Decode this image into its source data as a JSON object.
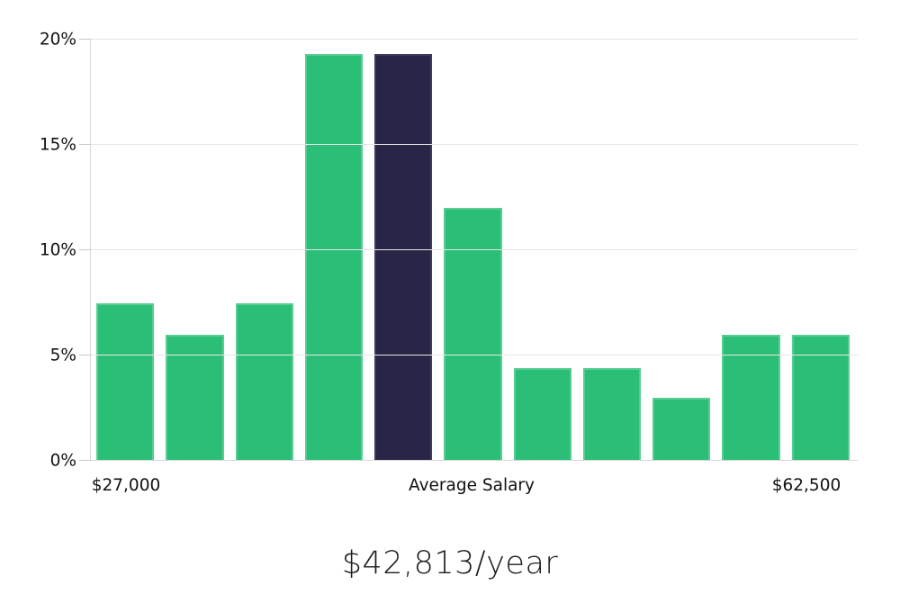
{
  "chart_data": {
    "type": "bar",
    "subtype": "histogram",
    "title": "$42,813/year",
    "x_axis_labels": [
      "$27,000",
      "Average Salary",
      "$62,500"
    ],
    "x_axis_range": [
      "$27,000",
      "$62,500"
    ],
    "y_ticks": {
      "labels": [
        "0%",
        "5%",
        "10%",
        "15%",
        "20%"
      ],
      "values": [
        0,
        5,
        10,
        15,
        20
      ]
    },
    "ylim": [
      0,
      20
    ],
    "values": [
      7.5,
      6.0,
      7.5,
      19.3,
      19.3,
      12.0,
      4.4,
      4.4,
      3.0,
      6.0,
      6.0
    ],
    "highlight_index": 4,
    "highlight_meaning": "Average Salary",
    "grid": "horizontal",
    "legend": "none",
    "colors": {
      "bar": "#2bbe76",
      "highlight_bar": "#282547",
      "gridline": "#e6e6e6",
      "axis_line": "#d8d8d8",
      "tick": "#c9c9c9",
      "axis_text": "#111111",
      "title_text": "#1c1c1c",
      "background": "#ffffff"
    }
  }
}
